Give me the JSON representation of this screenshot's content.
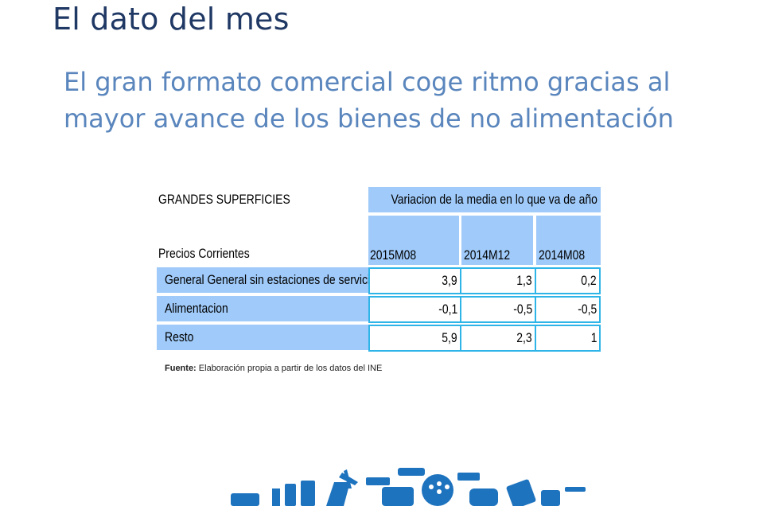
{
  "title": "El dato del mes",
  "subtitle": "El gran formato comercial coge ritmo gracias al mayor avance de los bienes de no alimentación",
  "table": {
    "heading": "GRANDES SUPERFICIES",
    "header_group": "Variacion de la media en lo que va de año",
    "row_header": "Precios Corrientes",
    "columns": [
      "2015M08",
      "2014M12",
      "2014M08"
    ],
    "rows": [
      {
        "label": "General General sin estaciones de servicio",
        "values": [
          "3,9",
          "1,3",
          "0,2"
        ]
      },
      {
        "label": "Alimentacion",
        "values": [
          "-0,1",
          "-0,5",
          "-0,5"
        ]
      },
      {
        "label": "Resto",
        "values": [
          "5,9",
          "2,3",
          "1"
        ]
      }
    ]
  },
  "source": {
    "label": "Fuente:",
    "text": " Elaboración propia a partir de los datos del INE"
  },
  "banner": {
    "icons": [
      "car-icon",
      "plane-icon",
      "gamepad-icon",
      "shopping-icon",
      "phone-icon"
    ],
    "color": "#1e73be"
  }
}
